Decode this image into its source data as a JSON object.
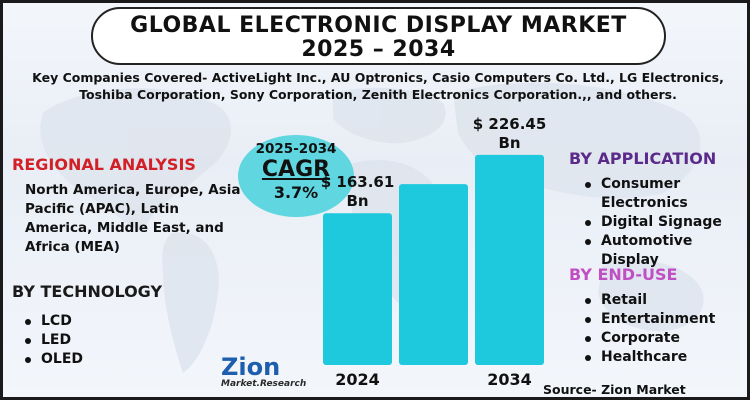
{
  "title": {
    "line1": "GLOBAL ELECTRONIC DISPLAY MARKET",
    "line2": "2025 – 2034"
  },
  "subtitle": "Key Companies Covered- ActiveLight Inc., AU Optronics, Casio Computers Co. Ltd., LG Electronics, Toshiba Corporation, Sony Corporation, Zenith Electronics Corporation.,, and others.",
  "regional": {
    "heading": "REGIONAL ANALYSIS",
    "text": "North America, Europe, Asia Pacific (APAC), Latin America, Middle East, and Africa (MEA)"
  },
  "technology": {
    "heading": "BY TECHNOLOGY",
    "items": [
      "LCD",
      "LED",
      "OLED"
    ]
  },
  "application": {
    "heading": "BY APPLICATION",
    "items": [
      "Consumer Electronics",
      "Digital Signage",
      "Automotive Display"
    ]
  },
  "end_use": {
    "heading": "BY END-USE",
    "items": [
      "Retail",
      "Entertainment",
      "Corporate",
      "Healthcare"
    ]
  },
  "cagr": {
    "period": "2025-2034",
    "label": "CAGR",
    "value": "3.7%"
  },
  "logo": {
    "name": "Zion",
    "sub": "Market.Research"
  },
  "source": "Source- Zion Market Research",
  "colors": {
    "bar": "#1ec8dd",
    "cagr_circle": "#5fd6e0",
    "regional_heading": "#d31f26",
    "application_heading": "#5b2a8a",
    "end_use_heading": "#c04fc4"
  },
  "chart_data": {
    "type": "bar",
    "title": "",
    "categories": [
      "2024",
      "",
      "2034"
    ],
    "values": [
      163.61,
      195,
      226.45
    ],
    "data_labels": [
      "$ 163.61 Bn",
      "",
      "$ 226.45 Bn"
    ],
    "unit": "USD Billion",
    "xlabel": "",
    "ylabel": "",
    "ylim": [
      0,
      240
    ],
    "grid": false,
    "legend": "none"
  }
}
